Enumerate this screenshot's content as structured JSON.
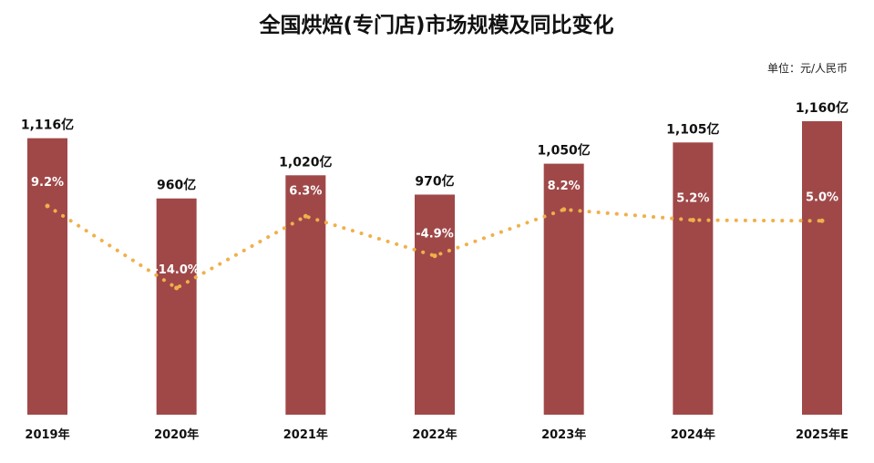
{
  "chart_data": {
    "type": "bar",
    "title": "全国烘焙(专门店)市场规模及同比变化",
    "unit": "单位：元/人民币",
    "categories": [
      "2019年",
      "2020年",
      "2021年",
      "2022年",
      "2023年",
      "2024年",
      "2025年E"
    ],
    "series": [
      {
        "type": "bar",
        "values": [
          1116,
          960,
          1020,
          970,
          1050,
          1105,
          1160
        ],
        "labels": [
          "1,116亿",
          "960亿",
          "1,020亿",
          "970亿",
          "1,050亿",
          "1,105亿",
          "1,160亿"
        ],
        "color": "#a04848"
      },
      {
        "type": "line",
        "style": "dotted",
        "values": [
          9.2,
          -14.0,
          6.3,
          -4.9,
          8.2,
          5.2,
          5.0
        ],
        "labels": [
          "9.2%",
          "-14.0%",
          "6.3%",
          "-4.9%",
          "8.2%",
          "5.2%",
          "5.0%"
        ],
        "color": "#f0b04a"
      }
    ],
    "grid": false,
    "legend": "none"
  }
}
